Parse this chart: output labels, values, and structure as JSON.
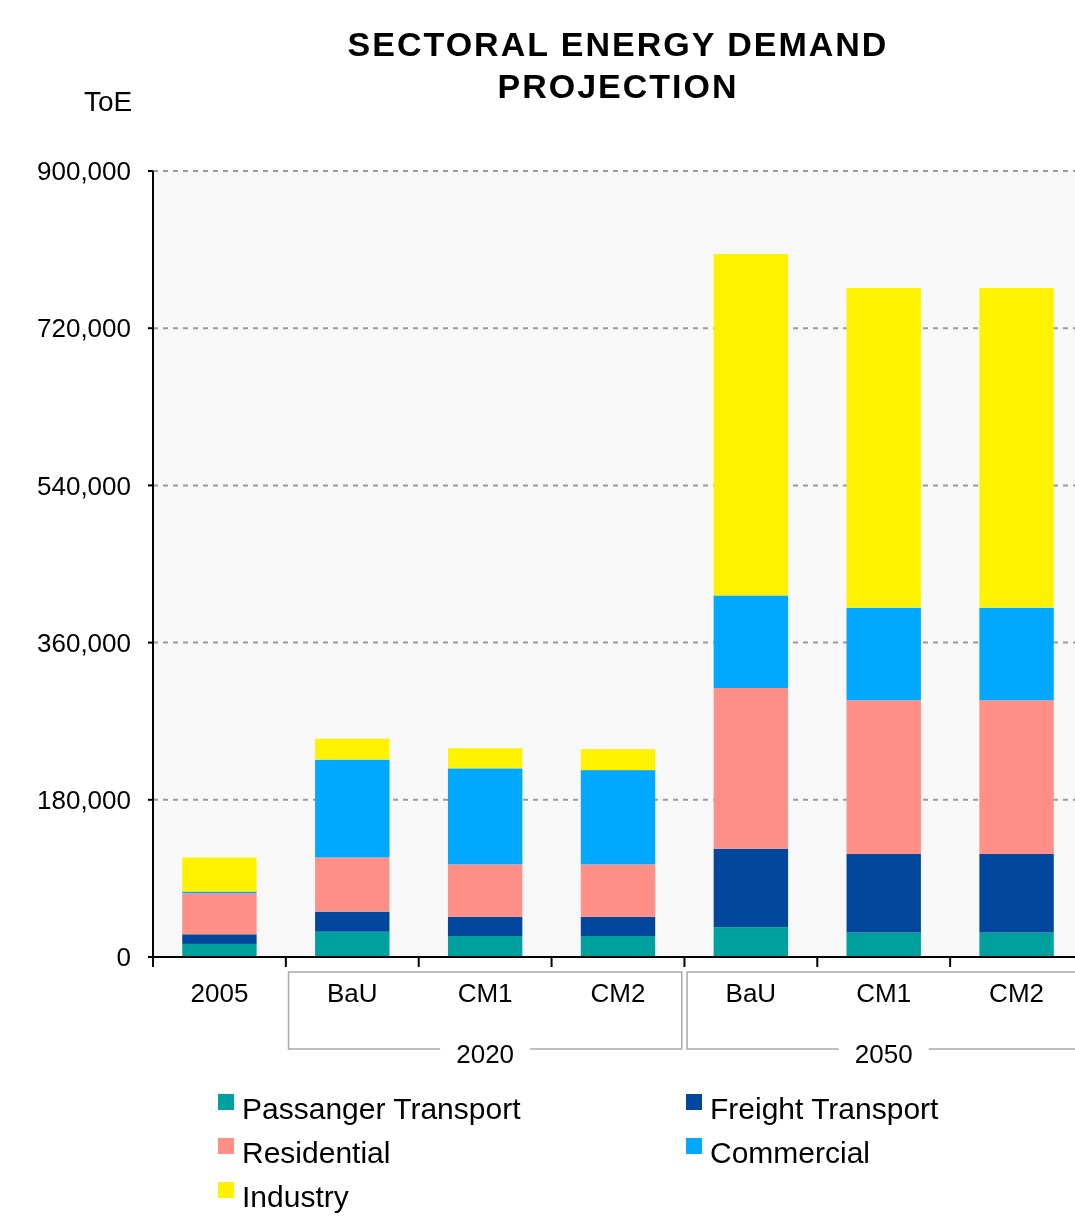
{
  "chart_data": {
    "type": "bar",
    "title": "SECTORAL ENERGY DEMAND PROJECTION",
    "ylabel": "ToE",
    "categories": [
      "2005",
      "BaU",
      "CM1",
      "CM2",
      "BaU",
      "CM1",
      "CM2"
    ],
    "stacked": true,
    "ylim": [
      0,
      900000
    ],
    "yticks": [
      0,
      {
        "value": 180000,
        "label": "180,000"
      },
      {
        "value": 360000,
        "label": "360,000"
      },
      {
        "value": 540000,
        "label": "540,000"
      },
      {
        "value": 720000,
        "label": "720,000"
      },
      {
        "value": 900000,
        "label": "900,000"
      }
    ],
    "grid": "y",
    "legend": "bottom",
    "annotations": [
      "2020",
      "2050"
    ],
    "series": [
      {
        "name": "Passanger Transport",
        "color": "#00a09e",
        "values": [
          15000,
          29000,
          24000,
          24000,
          34000,
          28000,
          28000
        ]
      },
      {
        "name": "Freight Transport",
        "color": "#00479d",
        "values": [
          11000,
          23000,
          22000,
          22000,
          90000,
          90000,
          90000
        ]
      },
      {
        "name": "Residential",
        "color": "#ff8f87",
        "values": [
          47000,
          62000,
          60000,
          60000,
          184000,
          176000,
          176000
        ]
      },
      {
        "name": "Commercial",
        "color": "#00a8ff",
        "values": [
          2000,
          112000,
          110000,
          108000,
          106000,
          106000,
          106000
        ]
      },
      {
        "name": "Industry",
        "color": "#fff200",
        "values": [
          39000,
          24000,
          23000,
          24000,
          391000,
          366000,
          366000
        ]
      }
    ]
  }
}
